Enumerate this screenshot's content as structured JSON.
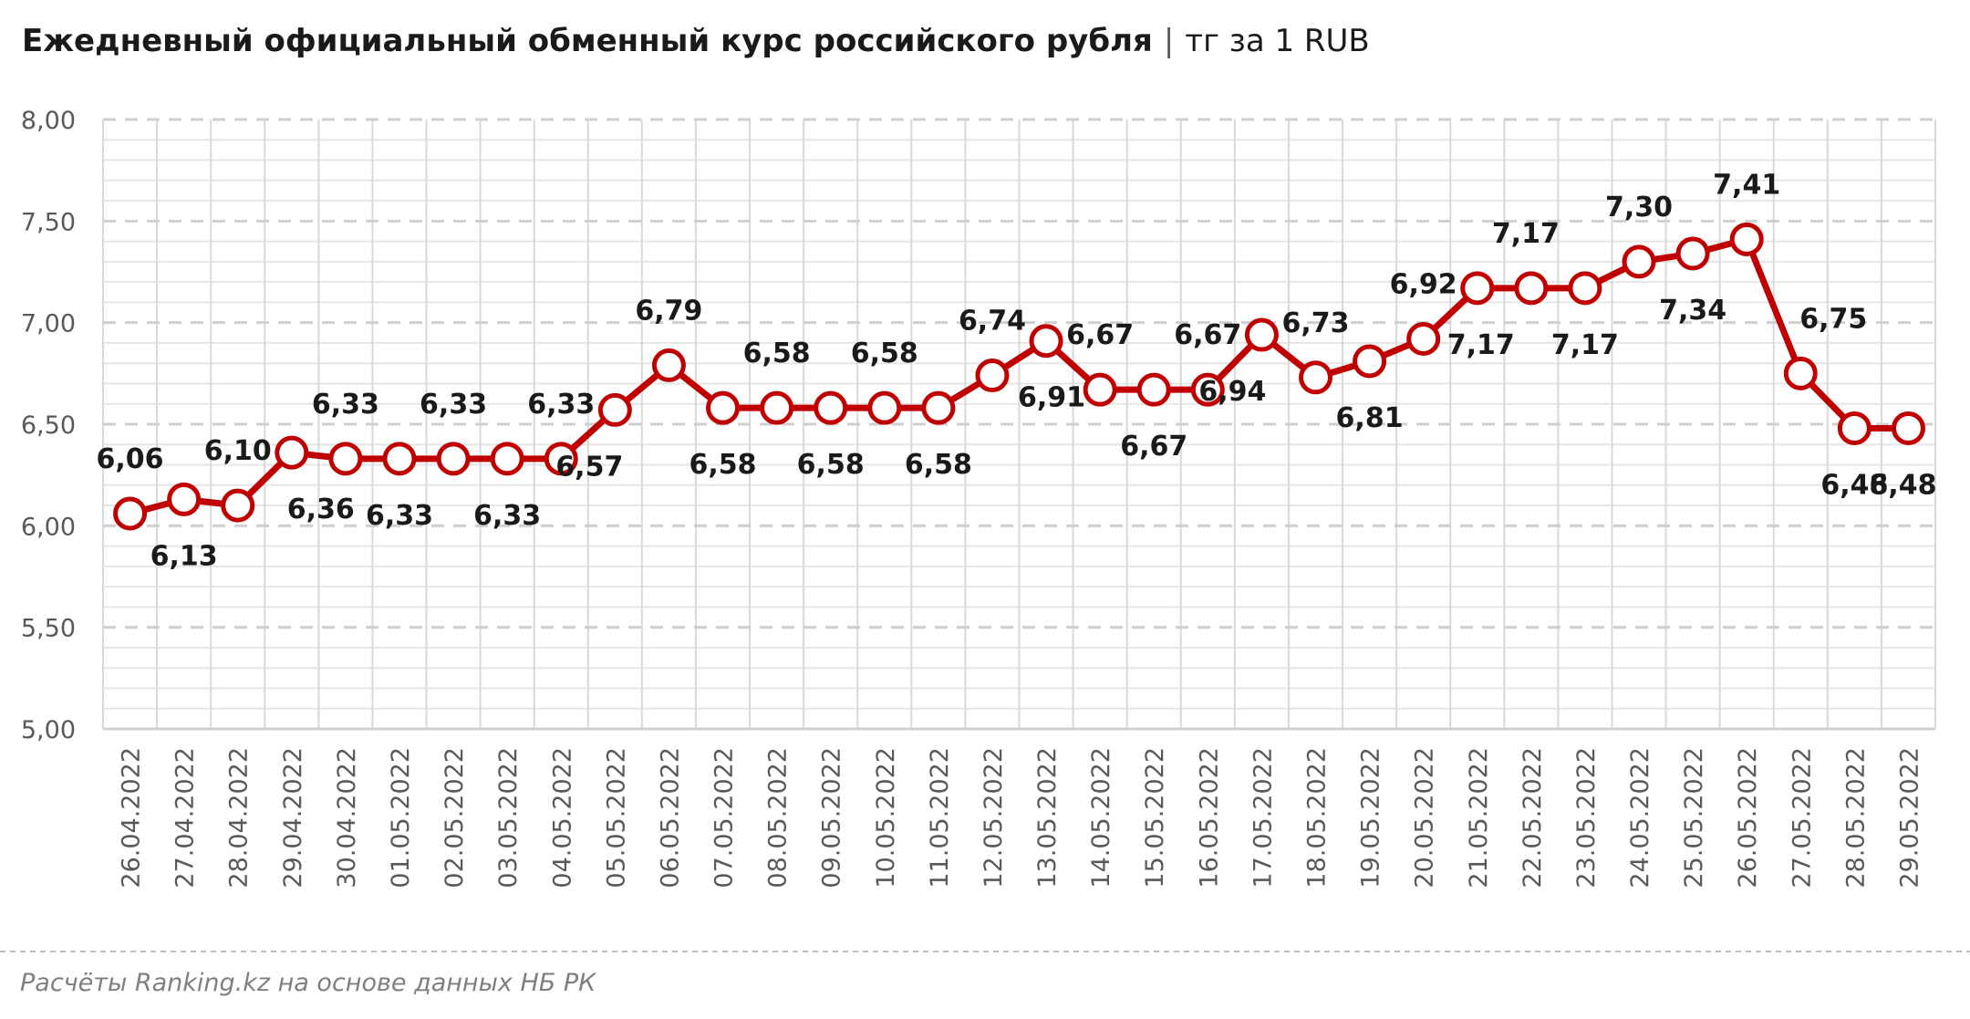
{
  "chart_data": {
    "type": "line",
    "title": "Ежедневный официальный обменный курс российского рубля",
    "title_unit": "тг за 1 RUB",
    "title_separator": "|",
    "xlabel": "",
    "ylabel": "",
    "ylim": [
      5.0,
      8.0
    ],
    "y_ticks": [
      "5,00",
      "5,50",
      "6,00",
      "6,50",
      "7,00",
      "7,50",
      "8,00"
    ],
    "y_tick_values": [
      5.0,
      5.5,
      6.0,
      6.5,
      7.0,
      7.5,
      8.0
    ],
    "grid": true,
    "legend": "none",
    "categories": [
      "26.04.2022",
      "27.04.2022",
      "28.04.2022",
      "29.04.2022",
      "30.04.2022",
      "01.05.2022",
      "02.05.2022",
      "03.05.2022",
      "04.05.2022",
      "05.05.2022",
      "06.05.2022",
      "07.05.2022",
      "08.05.2022",
      "09.05.2022",
      "10.05.2022",
      "11.05.2022",
      "12.05.2022",
      "13.05.2022",
      "14.05.2022",
      "15.05.2022",
      "16.05.2022",
      "17.05.2022",
      "18.05.2022",
      "19.05.2022",
      "20.05.2022",
      "21.05.2022",
      "22.05.2022",
      "23.05.2022",
      "24.05.2022",
      "25.05.2022",
      "26.05.2022",
      "27.05.2022",
      "28.05.2022",
      "29.05.2022"
    ],
    "values": [
      6.06,
      6.13,
      6.1,
      6.36,
      6.33,
      6.33,
      6.33,
      6.33,
      6.33,
      6.57,
      6.79,
      6.58,
      6.58,
      6.58,
      6.58,
      6.58,
      6.74,
      6.91,
      6.67,
      6.67,
      6.67,
      6.94,
      6.73,
      6.81,
      6.92,
      7.17,
      7.17,
      7.17,
      7.3,
      7.34,
      7.41,
      6.75,
      6.48,
      6.48
    ],
    "data_labels": [
      "6,06",
      "6,13",
      "6,10",
      "6,36",
      "6,33",
      "6,33",
      "6,33",
      "6,33",
      "6,33",
      "6,57",
      "6,79",
      "6,58",
      "6,58",
      "6,58",
      "6,58",
      "6,58",
      "6,74",
      "6,91",
      "6,67",
      "6,67",
      "6,67",
      "6,94",
      "6,73",
      "6,81",
      "6,92",
      "7,17",
      "7,17",
      "7,17",
      "7,30",
      "7,34",
      "7,41",
      "6,75",
      "6,48",
      "6,48"
    ],
    "series_color": "#c00000",
    "marker_fill": "#ffffff"
  },
  "footer": {
    "source": "Расчёты Ranking.kz на основе данных НБ РК"
  }
}
